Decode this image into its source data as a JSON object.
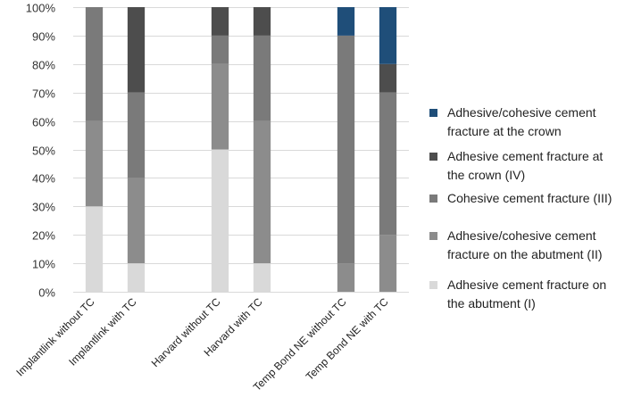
{
  "chart_data": {
    "type": "bar",
    "stacked": true,
    "y_format": "percent",
    "ylim": [
      0,
      100
    ],
    "yticks": [
      0,
      10,
      20,
      30,
      40,
      50,
      60,
      70,
      80,
      90,
      100
    ],
    "grid": true,
    "legend_position": "right",
    "title": "",
    "xlabel": "",
    "ylabel": "",
    "categories": [
      "Implantlink without TC",
      "Implantlink with TC",
      "",
      "Harvard without TC",
      "Harvard with TC",
      "",
      "Temp Bond NE without TC",
      "Temp Bond NE with TC"
    ],
    "series": [
      {
        "name": "Adhesive cement fracture on the abutment (I)",
        "legend_lines": [
          "Adhesive cement fracture on",
          "the abutment (I)"
        ],
        "color": "#d9d9d9",
        "values": [
          30,
          10,
          0,
          50,
          10,
          0,
          0,
          0
        ]
      },
      {
        "name": "Adhesive/cohesive cement fracture on the abutment (II)",
        "legend_lines": [
          "Adhesive/cohesive cement",
          "fracture on the abutment (II)"
        ],
        "color": "#8c8c8c",
        "values": [
          30,
          30,
          0,
          30,
          50,
          0,
          10,
          20
        ]
      },
      {
        "name": "Cohesive cement fracture (III)",
        "legend_lines": [
          "Cohesive cement fracture (III)"
        ],
        "color": "#7a7a7a",
        "values": [
          40,
          30,
          0,
          10,
          30,
          0,
          80,
          50
        ]
      },
      {
        "name": "Adhesive cement fracture at the crown (IV)",
        "legend_lines": [
          "Adhesive cement fracture at",
          "the crown (IV)"
        ],
        "color": "#4d4d4d",
        "values": [
          0,
          30,
          0,
          10,
          10,
          0,
          0,
          10
        ]
      },
      {
        "name": "Adhesive/cohesive cement fracture at the crown",
        "legend_lines": [
          "Adhesive/cohesive cement",
          "fracture at the crown"
        ],
        "color": "#1f4e79",
        "values": [
          0,
          0,
          0,
          0,
          0,
          0,
          10,
          20
        ]
      }
    ]
  }
}
